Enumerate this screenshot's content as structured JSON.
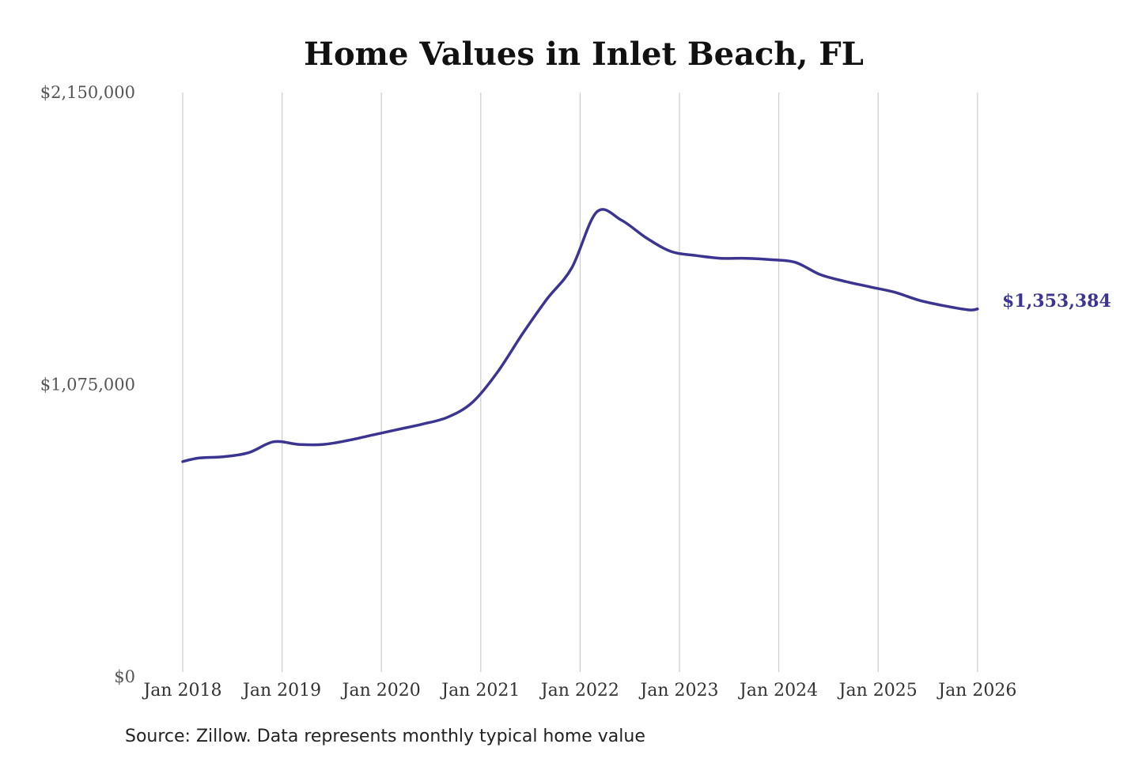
{
  "chart_data": {
    "type": "line",
    "title": "Home Values in Inlet Beach, FL",
    "source": "Source: Zillow. Data represents monthly typical home value",
    "ylim": [
      0,
      2150000
    ],
    "y_ticks": [
      {
        "value": 0,
        "label": "$0"
      },
      {
        "value": 1075000,
        "label": "$1,075,000"
      },
      {
        "value": 2150000,
        "label": "$2,150,000"
      }
    ],
    "x_ticks": [
      "Jan 2018",
      "Jan 2019",
      "Jan 2020",
      "Jan 2021",
      "Jan 2022",
      "Jan 2023",
      "Jan 2024",
      "Jan 2025",
      "Jan 2026"
    ],
    "grid": "vertical lines at each January",
    "line_color": "#3b3491",
    "end_label": "$1,353,384",
    "series": [
      {
        "x": [
          "2018-01",
          "2018-03",
          "2018-06",
          "2018-09",
          "2018-12",
          "2019-03",
          "2019-06",
          "2019-09",
          "2019-12",
          "2020-03",
          "2020-06",
          "2020-09",
          "2020-12",
          "2021-03",
          "2021-06",
          "2021-09",
          "2021-12",
          "2022-03",
          "2022-06",
          "2022-09",
          "2022-12",
          "2023-03",
          "2023-06",
          "2023-09",
          "2023-12",
          "2024-03",
          "2024-06",
          "2024-09",
          "2024-12",
          "2025-03",
          "2025-06",
          "2025-09",
          "2025-12",
          "2026-01"
        ],
        "values": [
          792000,
          805000,
          810000,
          825000,
          865000,
          855000,
          855000,
          870000,
          890000,
          910000,
          930000,
          955000,
          1010000,
          1120000,
          1260000,
          1390000,
          1505000,
          1710000,
          1680000,
          1615000,
          1565000,
          1550000,
          1540000,
          1540000,
          1535000,
          1525000,
          1480000,
          1455000,
          1435000,
          1415000,
          1385000,
          1365000,
          1350000,
          1353384
        ]
      }
    ]
  }
}
